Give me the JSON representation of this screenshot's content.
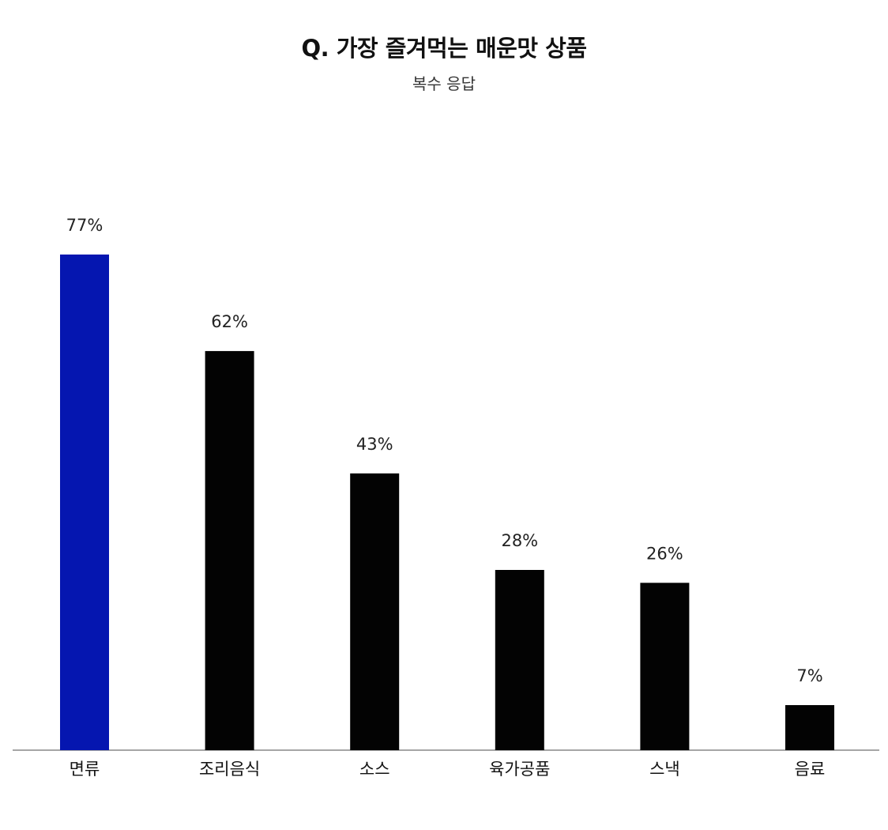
{
  "chart_data": {
    "type": "bar",
    "title": "Q. 가장 즐겨먹는 매운맛 상품",
    "subtitle": "복수 응답",
    "categories": [
      "면류",
      "조리음식",
      "소스",
      "육가공품",
      "스낵",
      "음료"
    ],
    "values": [
      77,
      62,
      43,
      28,
      26,
      7
    ],
    "value_labels": [
      "77%",
      "62%",
      "43%",
      "28%",
      "26%",
      "7%"
    ],
    "unit": "%",
    "ylim": [
      0,
      77
    ],
    "grid": false,
    "colors": {
      "highlight": "#0516B0",
      "default": "#030303",
      "axis": "#888888"
    },
    "highlight_index": 0
  }
}
